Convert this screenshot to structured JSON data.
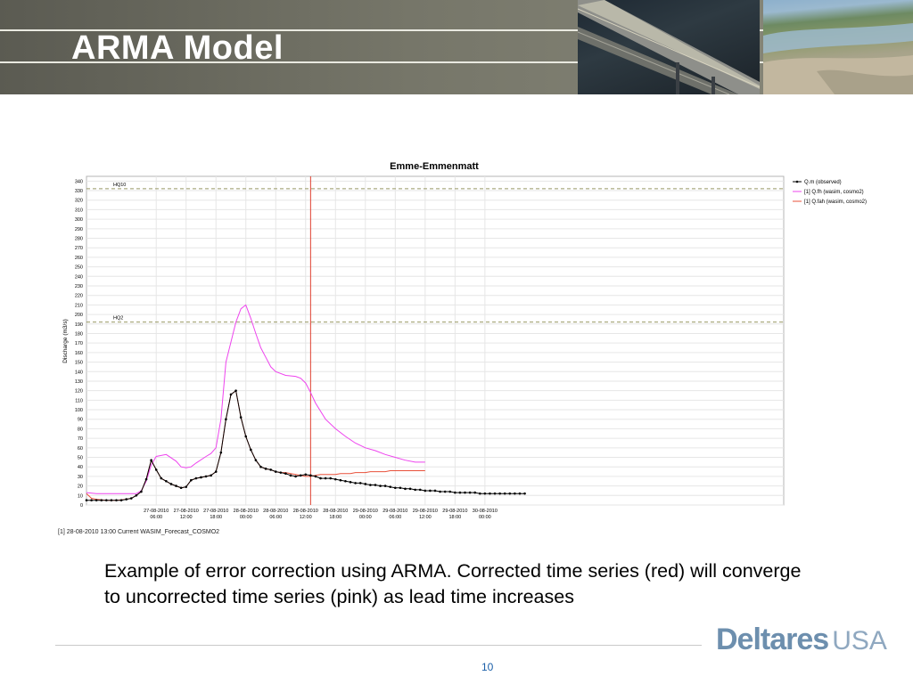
{
  "slide": {
    "title": "ARMA Model",
    "caption": "Example of error correction using ARMA. Corrected time series (red) will converge to uncorrected time series (pink) as lead time increases",
    "page_number": "10",
    "logo_main": "Deltares",
    "logo_suffix": "USA"
  },
  "chart_data": {
    "type": "line",
    "title": "Emme-Emmenmatt",
    "ylabel": "Discharge (m3/s)",
    "xlabel": "",
    "ylim": [
      0,
      345
    ],
    "yticks": [
      0,
      10,
      20,
      30,
      40,
      50,
      60,
      70,
      80,
      90,
      100,
      110,
      120,
      130,
      140,
      150,
      160,
      170,
      180,
      190,
      200,
      210,
      220,
      230,
      240,
      250,
      260,
      270,
      280,
      290,
      300,
      310,
      320,
      330,
      340
    ],
    "xlim": [
      -8,
      132
    ],
    "xunit": "hours from 27-08-2010 00:00",
    "xticks": [
      {
        "x": 6,
        "label1": "27-08-2010",
        "label2": "06:00"
      },
      {
        "x": 12,
        "label1": "27-08-2010",
        "label2": "12:00"
      },
      {
        "x": 18,
        "label1": "27-08-2010",
        "label2": "18:00"
      },
      {
        "x": 24,
        "label1": "28-08-2010",
        "label2": "00:00"
      },
      {
        "x": 30,
        "label1": "28-08-2010",
        "label2": "06:00"
      },
      {
        "x": 36,
        "label1": "28-08-2010",
        "label2": "12:00"
      },
      {
        "x": 42,
        "label1": "28-08-2010",
        "label2": "18:00"
      },
      {
        "x": 48,
        "label1": "29-08-2010",
        "label2": "00:00"
      },
      {
        "x": 54,
        "label1": "29-08-2010",
        "label2": "06:00"
      },
      {
        "x": 60,
        "label1": "29-08-2010",
        "label2": "12:00"
      },
      {
        "x": 66,
        "label1": "29-08-2010",
        "label2": "18:00"
      },
      {
        "x": 72,
        "label1": "30-08-2010",
        "label2": "00:00"
      }
    ],
    "thresholds": [
      {
        "name": "HQ10",
        "value": 332
      },
      {
        "name": "HQ2",
        "value": 192
      }
    ],
    "forecast_time": 37,
    "grid": true,
    "legend_position": "right",
    "note": "[1] 28-08-2010 13:00 Current WASIM_Forecast_COSMO2",
    "series": [
      {
        "name": "Q.m  (observed)",
        "color": "#000000",
        "markers": true,
        "x": [
          -8,
          -7,
          -6,
          -5,
          -4,
          -3,
          -2,
          -1,
          0,
          1,
          2,
          3,
          4,
          5,
          6,
          7,
          8,
          9,
          10,
          11,
          12,
          13,
          14,
          15,
          16,
          17,
          18,
          19,
          20,
          21,
          22,
          23,
          24,
          25,
          26,
          27,
          28,
          29,
          30,
          31,
          32,
          33,
          34,
          35,
          36,
          37,
          38,
          39,
          40,
          41,
          42,
          43,
          44,
          45,
          46,
          47,
          48,
          49,
          50,
          51,
          52,
          53,
          54,
          55,
          56,
          57,
          58,
          59,
          60,
          61,
          62,
          63,
          64,
          65,
          66,
          67,
          68,
          69,
          70,
          71,
          72,
          73,
          74,
          75,
          76,
          77,
          78,
          79,
          80
        ],
        "y": [
          5,
          5,
          5,
          5,
          5,
          5,
          5,
          5,
          6,
          7,
          10,
          14,
          27,
          47,
          37,
          28,
          25,
          22,
          20,
          18,
          19,
          26,
          28,
          29,
          30,
          31,
          35,
          55,
          90,
          116,
          120,
          92,
          72,
          58,
          47,
          40,
          38,
          37,
          35,
          34,
          33,
          31,
          30,
          31,
          32,
          31,
          30,
          28,
          28,
          28,
          27,
          26,
          25,
          24,
          23,
          23,
          22,
          21,
          21,
          20,
          20,
          19,
          18,
          18,
          17,
          17,
          16,
          16,
          15,
          15,
          15,
          14,
          14,
          14,
          13,
          13,
          13,
          13,
          13,
          12,
          12,
          12,
          12,
          12,
          12,
          12,
          12,
          12,
          12
        ]
      },
      {
        "name": "[1] Q.fh  (wasim, cosmo2)",
        "color": "#ee44ee",
        "markers": false,
        "x": [
          -8,
          -6,
          -4,
          -2,
          0,
          2,
          3,
          4,
          5,
          6,
          8,
          10,
          11,
          12,
          13,
          14,
          16,
          17,
          18,
          19,
          20,
          22,
          23,
          24,
          25,
          26,
          27,
          28,
          29,
          30,
          32,
          34,
          35,
          36,
          37,
          38,
          40,
          42,
          44,
          46,
          48,
          50,
          52,
          54,
          56,
          58,
          60
        ],
        "y": [
          13,
          12,
          12,
          12,
          12,
          12,
          15,
          25,
          42,
          51,
          53,
          46,
          40,
          39,
          40,
          44,
          51,
          54,
          60,
          90,
          150,
          192,
          206,
          210,
          196,
          180,
          165,
          155,
          145,
          140,
          136,
          135,
          133,
          128,
          118,
          107,
          90,
          80,
          72,
          65,
          60,
          57,
          53,
          50,
          47,
          45,
          45
        ]
      },
      {
        "name": "[1] Q.fah  (wasim, cosmo2)",
        "color": "#e8503a",
        "markers": false,
        "x": [
          -8,
          -7,
          -6,
          -4,
          -2,
          0,
          1,
          2,
          3,
          4,
          5,
          6,
          7,
          8,
          9,
          10,
          11,
          12,
          13,
          14,
          15,
          16,
          17,
          18,
          19,
          20,
          21,
          22,
          23,
          24,
          25,
          26,
          27,
          28,
          29,
          30,
          31,
          32,
          33,
          34,
          35,
          36,
          37,
          38,
          39,
          40,
          41,
          42,
          43,
          44,
          45,
          46,
          47,
          48,
          49,
          50,
          51,
          52,
          53,
          54,
          55,
          56,
          57,
          58,
          59,
          60
        ],
        "y": [
          12,
          7,
          6,
          5,
          5,
          6,
          7,
          10,
          14,
          27,
          47,
          37,
          28,
          25,
          22,
          20,
          18,
          19,
          26,
          28,
          29,
          30,
          31,
          35,
          55,
          90,
          116,
          120,
          92,
          72,
          58,
          47,
          40,
          38,
          37,
          35,
          34,
          34,
          33,
          32,
          31,
          30,
          30,
          31,
          32,
          32,
          32,
          32,
          33,
          33,
          33,
          34,
          34,
          34,
          35,
          35,
          35,
          35,
          36,
          36,
          36,
          36,
          36,
          36,
          36,
          36
        ]
      }
    ]
  }
}
